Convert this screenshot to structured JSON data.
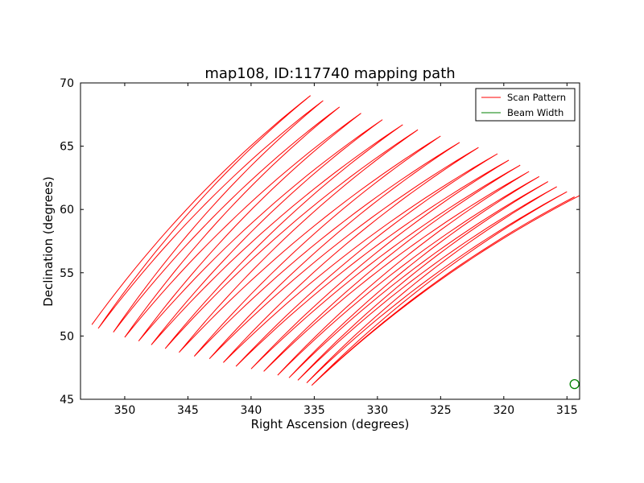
{
  "chart_data": {
    "type": "line",
    "title": "map108, ID:117740 mapping path",
    "xlabel": "Right Ascension (degrees)",
    "ylabel": "Declination (degrees)",
    "xlim": [
      353.5,
      314.0
    ],
    "ylim": [
      45,
      70
    ],
    "x_inverted": true,
    "x_ticks": [
      350,
      345,
      340,
      335,
      330,
      325,
      320,
      315
    ],
    "y_ticks": [
      45,
      50,
      55,
      60,
      65,
      70
    ],
    "grid": false,
    "legend_position": "top-right",
    "series": [
      {
        "name": "Scan Pattern",
        "color": "#ff0000",
        "kind": "raster-scan",
        "top_turns": [
          [
            335.3,
            69.0
          ],
          [
            334.3,
            68.6
          ],
          [
            333.0,
            68.1
          ],
          [
            331.3,
            67.6
          ],
          [
            329.6,
            67.1
          ],
          [
            328.0,
            66.7
          ],
          [
            326.8,
            66.3
          ],
          [
            325.0,
            65.8
          ],
          [
            323.5,
            65.3
          ],
          [
            322.0,
            64.9
          ],
          [
            320.5,
            64.4
          ],
          [
            319.6,
            63.9
          ],
          [
            318.7,
            63.5
          ],
          [
            318.0,
            63.0
          ],
          [
            317.2,
            62.6
          ],
          [
            316.5,
            62.2
          ],
          [
            315.8,
            61.8
          ],
          [
            315.0,
            61.4
          ],
          [
            314.4,
            61.0
          ],
          [
            314.0,
            61.1
          ]
        ],
        "bottom_turns": [
          [
            352.6,
            50.9
          ],
          [
            352.1,
            50.6
          ],
          [
            350.9,
            50.3
          ],
          [
            350.0,
            49.9
          ],
          [
            348.9,
            49.6
          ],
          [
            347.9,
            49.3
          ],
          [
            346.8,
            49.0
          ],
          [
            345.7,
            48.7
          ],
          [
            344.5,
            48.4
          ],
          [
            343.3,
            48.2
          ],
          [
            342.2,
            47.9
          ],
          [
            341.2,
            47.6
          ],
          [
            340.0,
            47.4
          ],
          [
            339.0,
            47.2
          ],
          [
            337.9,
            46.9
          ],
          [
            337.0,
            46.7
          ],
          [
            336.3,
            46.5
          ],
          [
            335.6,
            46.3
          ],
          [
            335.2,
            46.1
          ]
        ]
      },
      {
        "name": "Beam Width",
        "color": "#008000",
        "marker": "circle",
        "points": [
          [
            314.4,
            46.2
          ]
        ]
      }
    ]
  }
}
